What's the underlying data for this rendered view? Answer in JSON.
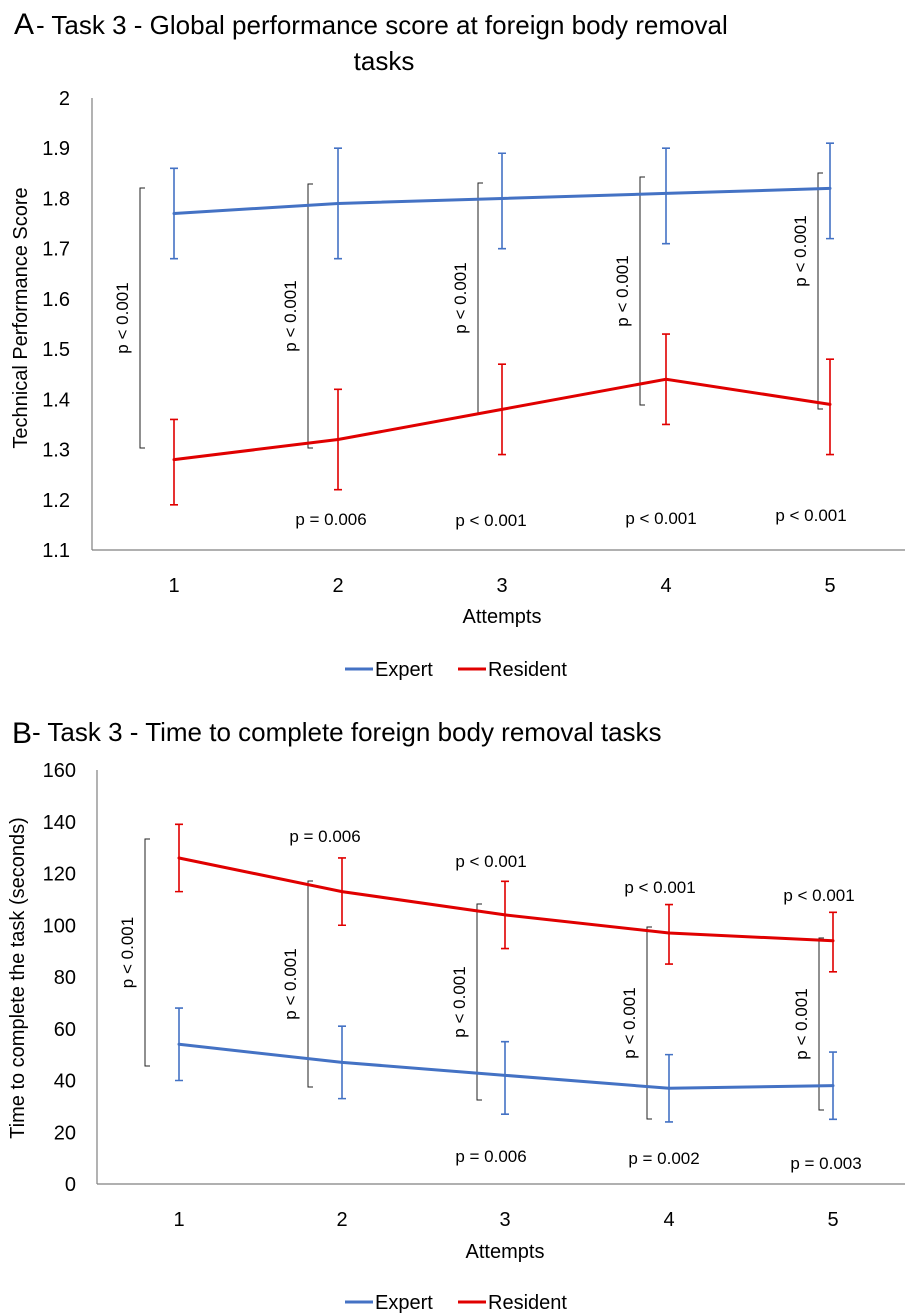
{
  "chart_data": [
    {
      "type": "line",
      "panel": "A",
      "title": "- Task 3 - Global performance score at foreign body removal tasks",
      "title_line1": "- Task 3 - Global performance score at foreign body removal",
      "title_line2": "tasks",
      "xlabel": "Attempts",
      "ylabel": "Technical Performance Score",
      "ylim": [
        1.1,
        2.0
      ],
      "yticks": [
        "2",
        "1.9",
        "1.8",
        "1.7",
        "1.6",
        "1.5",
        "1.4",
        "1.3",
        "1.2",
        "1.1"
      ],
      "categories": [
        "1",
        "2",
        "3",
        "4",
        "5"
      ],
      "legend_position": "bottom",
      "grid": false,
      "series": [
        {
          "name": "Expert",
          "color": "#4472C4",
          "values": [
            1.77,
            1.79,
            1.8,
            1.81,
            1.82
          ],
          "error_low": [
            1.68,
            1.68,
            1.7,
            1.71,
            1.72
          ],
          "error_high": [
            1.86,
            1.9,
            1.89,
            1.9,
            1.91
          ]
        },
        {
          "name": "Resident",
          "color": "#E00000",
          "values": [
            1.28,
            1.32,
            1.38,
            1.44,
            1.39
          ],
          "error_low": [
            1.19,
            1.22,
            1.29,
            1.35,
            1.29
          ],
          "error_high": [
            1.36,
            1.42,
            1.47,
            1.53,
            1.48
          ]
        }
      ],
      "between_annotations": [
        "p < 0.001",
        "p < 0.001",
        "p < 0.001",
        "p < 0.001",
        "p < 0.001"
      ],
      "below_annotations": [
        "",
        "p = 0.006",
        "p < 0.001",
        "p < 0.001",
        "p < 0.001"
      ]
    },
    {
      "type": "line",
      "panel": "B",
      "title": "- Task 3 - Time to complete foreign body removal tasks",
      "xlabel": "Attempts",
      "ylabel": "Time to complete the task (seconds)",
      "ylim": [
        0,
        160
      ],
      "yticks": [
        "160",
        "140",
        "120",
        "100",
        "80",
        "60",
        "40",
        "20",
        "0"
      ],
      "categories": [
        "1",
        "2",
        "3",
        "4",
        "5"
      ],
      "legend_position": "bottom",
      "grid": false,
      "series": [
        {
          "name": "Expert",
          "color": "#4472C4",
          "values": [
            54,
            47,
            42,
            37,
            38
          ],
          "error_low": [
            40,
            33,
            27,
            24,
            25
          ],
          "error_high": [
            68,
            61,
            55,
            50,
            51
          ]
        },
        {
          "name": "Resident",
          "color": "#E00000",
          "values": [
            126,
            113,
            104,
            97,
            94
          ],
          "error_low": [
            113,
            100,
            91,
            85,
            82
          ],
          "error_high": [
            139,
            126,
            117,
            108,
            105
          ]
        }
      ],
      "between_annotations": [
        "p < 0.001",
        "p < 0.001",
        "p < 0.001",
        "p < 0.001",
        "p < 0.001"
      ],
      "above_annotations": [
        "",
        "p = 0.006",
        "p < 0.001",
        "p < 0.001",
        "p < 0.001"
      ],
      "below_annotations": [
        "",
        "",
        "p = 0.006",
        "p = 0.002",
        "p = 0.003"
      ]
    }
  ]
}
